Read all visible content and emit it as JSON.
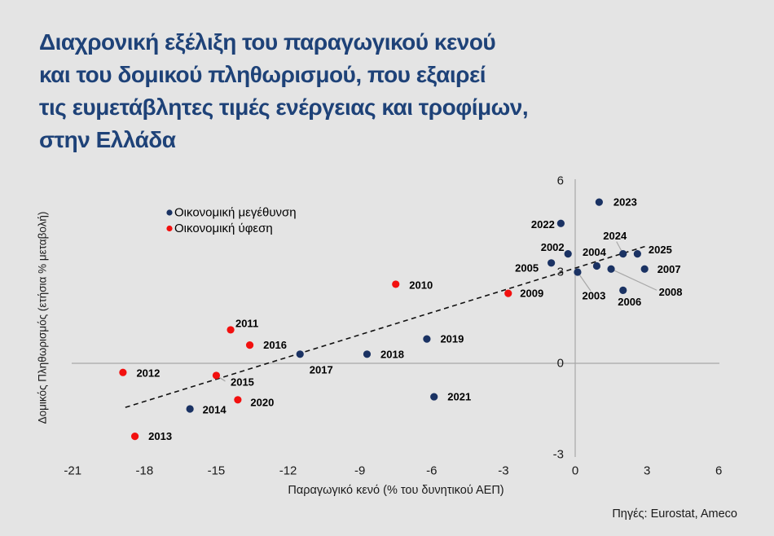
{
  "title": {
    "lines": [
      "Διαχρονική εξέλιξη του παραγωγικού κενού",
      "και του δομικού πληθωρισμού, που εξαιρεί",
      "τις ευμετάβλητες τιμές ενέργειας και τροφίμων,",
      "στην Ελλάδα"
    ]
  },
  "source": "Πηγές: Eurostat, Ameco",
  "colors": {
    "background": "#e4e4e4",
    "title": "#1e4278",
    "growth_point": "#1a3263",
    "recession_point": "#f2100f",
    "axis_line": "#a8a8a8",
    "connector_line": "#a8a8a8",
    "trendline": "#111111",
    "label_text": "#000000",
    "tick_text": "#1a1a1a"
  },
  "chart_data": {
    "type": "scatter",
    "title": "Διαχρονική εξέλιξη του παραγωγικού κενού και του δομικού πληθωρισμού, που εξαιρεί τις ευμετάβλητες τιμές ενέργειας και τροφίμων, στην Ελλάδα",
    "xlabel": "Παραγωγικό κενό (% του δυνητικού ΑΕΠ)",
    "ylabel": "Δομικός Πληθωρισμός (ετήσια % μεταβολή)",
    "xlim": [
      -21,
      6
    ],
    "ylim": [
      -3,
      6
    ],
    "x_ticks": [
      -21,
      -18,
      -15,
      -12,
      -9,
      -6,
      -3,
      0,
      3,
      6
    ],
    "y_ticks": [
      6,
      3,
      0,
      -3
    ],
    "grid": false,
    "legend_position": "top-left-inside",
    "legend": [
      {
        "label": "Οικονομική μεγέθυνση",
        "color": "#1a3263"
      },
      {
        "label": "Οικονομική ύφεση",
        "color": "#f2100f"
      }
    ],
    "trendline": {
      "style": "dashed",
      "x1": -18.8,
      "y1": -1.45,
      "x2": 2.95,
      "y2": 3.85
    },
    "series": [
      {
        "name": "Οικονομική μεγέθυνση",
        "color": "#1a3263",
        "points": [
          {
            "year": "2002",
            "x": -0.3,
            "y": 3.6,
            "label_dx": -19,
            "label_dy": -8
          },
          {
            "year": "2003",
            "x": 0.1,
            "y": 3.0,
            "label_dx": 20,
            "label_dy": 29,
            "conn_dx": 16,
            "conn_dy": 23
          },
          {
            "year": "2004",
            "x": 0.9,
            "y": 3.2,
            "label_dx": -3,
            "label_dy": -17
          },
          {
            "year": "2005",
            "x": -1.0,
            "y": 3.3,
            "label_dx": -30,
            "label_dy": 6
          },
          {
            "year": "2006",
            "x": 2.0,
            "y": 2.4,
            "label_dx": 8,
            "label_dy": 14
          },
          {
            "year": "2007",
            "x": 2.9,
            "y": 3.1,
            "label_dx": 30,
            "label_dy": 0
          },
          {
            "year": "2008",
            "x": 1.5,
            "y": 3.1,
            "label_dx": 73,
            "label_dy": 28,
            "conn_dx": 56,
            "conn_dy": 26
          },
          {
            "year": "2014",
            "x": -16.1,
            "y": -1.5,
            "label_dx": 30,
            "label_dy": 1
          },
          {
            "year": "2017",
            "x": -11.5,
            "y": 0.3,
            "label_dx": 26,
            "label_dy": 19
          },
          {
            "year": "2018",
            "x": -8.7,
            "y": 0.3,
            "label_dx": 31,
            "label_dy": 0
          },
          {
            "year": "2019",
            "x": -6.2,
            "y": 0.8,
            "label_dx": 31,
            "label_dy": 0
          },
          {
            "year": "2021",
            "x": -5.9,
            "y": -1.1,
            "label_dx": 31,
            "label_dy": 0
          },
          {
            "year": "2022",
            "x": -0.6,
            "y": 4.6,
            "label_dx": -22,
            "label_dy": 1
          },
          {
            "year": "2023",
            "x": 1.0,
            "y": 5.3,
            "label_dx": 32,
            "label_dy": 0
          },
          {
            "year": "2024",
            "x": 2.0,
            "y": 3.6,
            "label_dx": -10,
            "label_dy": -22,
            "conn_dx": -8,
            "conn_dy": -15
          },
          {
            "year": "2025",
            "x": 2.6,
            "y": 3.6,
            "label_dx": 28,
            "label_dy": -5
          }
        ]
      },
      {
        "name": "Οικονομική ύφεση",
        "color": "#f2100f",
        "points": [
          {
            "year": "2009",
            "x": -2.8,
            "y": 2.3,
            "label_dx": 29,
            "label_dy": 0
          },
          {
            "year": "2010",
            "x": -7.5,
            "y": 2.6,
            "label_dx": 31,
            "label_dy": 1
          },
          {
            "year": "2011",
            "x": -14.4,
            "y": 1.1,
            "label_dx": 20,
            "label_dy": -8
          },
          {
            "year": "2012",
            "x": -18.9,
            "y": -0.3,
            "label_dx": 31,
            "label_dy": 1
          },
          {
            "year": "2013",
            "x": -18.4,
            "y": -2.4,
            "label_dx": 31,
            "label_dy": 0
          },
          {
            "year": "2015",
            "x": -15.0,
            "y": -0.4,
            "label_dx": 32,
            "label_dy": 8,
            "conn_dx": 11,
            "conn_dy": 7
          },
          {
            "year": "2016",
            "x": -13.6,
            "y": 0.6,
            "label_dx": 31,
            "label_dy": 0
          },
          {
            "year": "2020",
            "x": -14.1,
            "y": -1.2,
            "label_dx": 30,
            "label_dy": 3
          }
        ]
      }
    ]
  }
}
